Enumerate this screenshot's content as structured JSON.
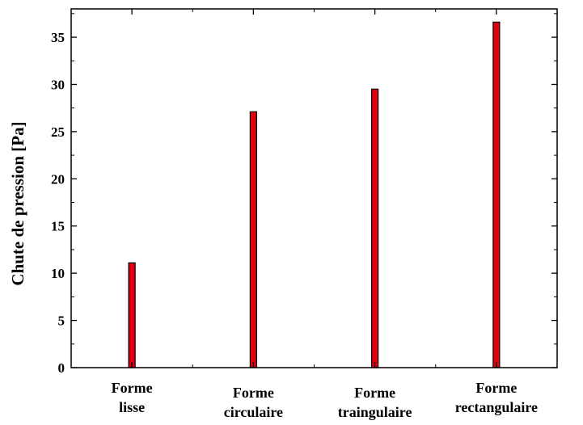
{
  "chart_data": {
    "type": "bar",
    "title": "",
    "xlabel": "",
    "ylabel": "Chute de pression [Pa]",
    "ylim": [
      0,
      38
    ],
    "ytick_step": 5,
    "categories": [
      [
        "Forme",
        "lisse"
      ],
      [
        "Forme",
        "circulaire"
      ],
      [
        "Forme",
        "traingulaire"
      ],
      [
        "Forme",
        "rectangulaire"
      ]
    ],
    "category_label_layout": [
      "high",
      "low",
      "low",
      "high"
    ],
    "values": [
      11.1,
      27.1,
      29.5,
      36.6
    ],
    "bar_color": "#e0000f",
    "bar_edge_color": "#000000",
    "grid": false,
    "legend": "none"
  }
}
